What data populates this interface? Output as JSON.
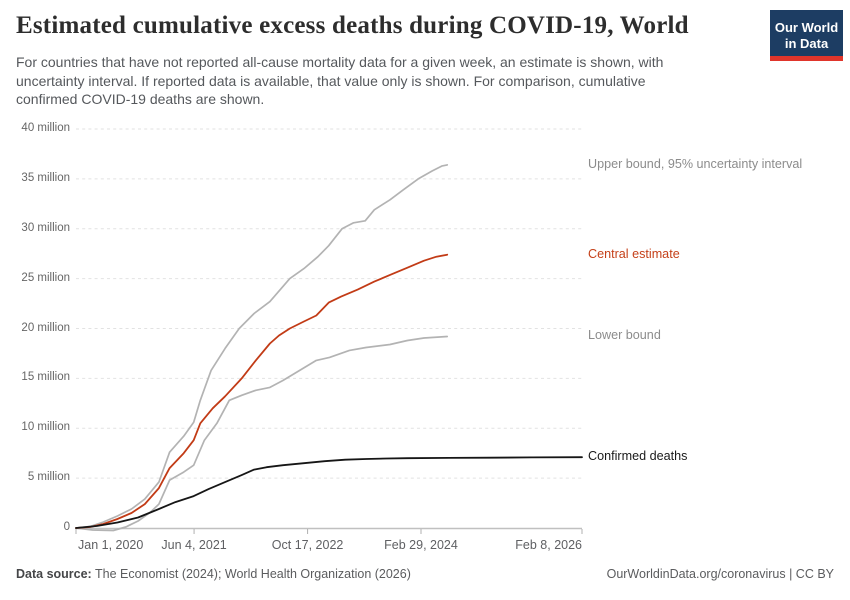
{
  "header": {
    "title": "Estimated cumulative excess deaths during COVID-19, World",
    "subtitle": "For countries that have not reported all-cause mortality data for a given week, an estimate is shown, with\nuncertainty interval. If reported data is available, that value only is shown. For comparison, cumulative\nconfirmed COVID-19 deaths are shown.",
    "logo": {
      "line1": "Our World",
      "line2": "in Data",
      "bg_color": "#1d3d63",
      "stripe_color": "#e0352b"
    }
  },
  "footer": {
    "source_label": "Data source:",
    "source_text": " The Economist (2024); World Health Organization (2026)",
    "right_text": "OurWorldinData.org/coronavirus | CC BY"
  },
  "chart_data": {
    "type": "line",
    "title": "Estimated cumulative excess deaths during COVID-19, World",
    "xlabel": "",
    "ylabel": "",
    "grid": "dashed-horizontal",
    "legend_position": "right-of-line-ends",
    "x_range": [
      2020.0,
      2026.107
    ],
    "ylim": [
      0,
      40
    ],
    "y_unit": "million",
    "y_axis": {
      "ticks": [
        {
          "v": 0,
          "label": "0"
        },
        {
          "v": 5,
          "label": "5 million"
        },
        {
          "v": 10,
          "label": "10 million"
        },
        {
          "v": 15,
          "label": "15 million"
        },
        {
          "v": 20,
          "label": "20 million"
        },
        {
          "v": 25,
          "label": "25 million"
        },
        {
          "v": 30,
          "label": "30 million"
        },
        {
          "v": 35,
          "label": "35 million"
        },
        {
          "v": 40,
          "label": "40 million"
        }
      ]
    },
    "x_axis": {
      "ticks": [
        {
          "t": 2020.0,
          "label": "Jan 1, 2020"
        },
        {
          "t": 2021.425,
          "label": "Jun 4, 2021"
        },
        {
          "t": 2022.795,
          "label": "Oct 17, 2022"
        },
        {
          "t": 2024.164,
          "label": "Feb 29, 2024"
        },
        {
          "t": 2026.107,
          "label": "Feb 8, 2026"
        }
      ]
    },
    "series": [
      {
        "name": "Upper bound, 95% uncertainty interval",
        "color": "#b3b3b3",
        "label_color": "#8c8c8c",
        "width": 1.7,
        "points": [
          [
            2020.0,
            0
          ],
          [
            2020.17,
            0.15
          ],
          [
            2020.33,
            0.6
          ],
          [
            2020.5,
            1.2
          ],
          [
            2020.67,
            1.9
          ],
          [
            2020.83,
            2.9
          ],
          [
            2021.0,
            4.6
          ],
          [
            2021.13,
            7.6
          ],
          [
            2021.3,
            9.2
          ],
          [
            2021.42,
            10.6
          ],
          [
            2021.5,
            12.8
          ],
          [
            2021.63,
            15.8
          ],
          [
            2021.8,
            18.0
          ],
          [
            2021.97,
            20.0
          ],
          [
            2022.15,
            21.5
          ],
          [
            2022.34,
            22.7
          ],
          [
            2022.58,
            25.0
          ],
          [
            2022.75,
            26.0
          ],
          [
            2022.92,
            27.2
          ],
          [
            2023.05,
            28.3
          ],
          [
            2023.21,
            30.0
          ],
          [
            2023.35,
            30.6
          ],
          [
            2023.49,
            30.8
          ],
          [
            2023.6,
            31.9
          ],
          [
            2023.79,
            32.9
          ],
          [
            2023.95,
            33.9
          ],
          [
            2024.13,
            35.0
          ],
          [
            2024.3,
            35.8
          ],
          [
            2024.42,
            36.3
          ],
          [
            2024.48,
            36.4
          ]
        ]
      },
      {
        "name": "Lower bound",
        "color": "#b3b3b3",
        "label_color": "#8c8c8c",
        "width": 1.7,
        "points": [
          [
            2020.0,
            0
          ],
          [
            2020.2,
            -0.2
          ],
          [
            2020.45,
            -0.25
          ],
          [
            2020.6,
            0.1
          ],
          [
            2020.75,
            0.7
          ],
          [
            2020.9,
            1.6
          ],
          [
            2021.0,
            2.4
          ],
          [
            2021.13,
            4.8
          ],
          [
            2021.3,
            5.6
          ],
          [
            2021.42,
            6.3
          ],
          [
            2021.55,
            8.8
          ],
          [
            2021.7,
            10.5
          ],
          [
            2021.85,
            12.8
          ],
          [
            2022.0,
            13.3
          ],
          [
            2022.17,
            13.8
          ],
          [
            2022.34,
            14.1
          ],
          [
            2022.5,
            14.8
          ],
          [
            2022.7,
            15.8
          ],
          [
            2022.9,
            16.8
          ],
          [
            2023.06,
            17.1
          ],
          [
            2023.3,
            17.8
          ],
          [
            2023.5,
            18.1
          ],
          [
            2023.79,
            18.4
          ],
          [
            2024.0,
            18.8
          ],
          [
            2024.2,
            19.05
          ],
          [
            2024.48,
            19.2
          ]
        ]
      },
      {
        "name": "Central estimate",
        "color": "#c23b16",
        "label_color": "#c5411a",
        "width": 1.8,
        "points": [
          [
            2020.0,
            0
          ],
          [
            2020.17,
            0.1
          ],
          [
            2020.33,
            0.4
          ],
          [
            2020.5,
            0.9
          ],
          [
            2020.67,
            1.5
          ],
          [
            2020.83,
            2.4
          ],
          [
            2021.0,
            4.0
          ],
          [
            2021.13,
            6.0
          ],
          [
            2021.3,
            7.5
          ],
          [
            2021.42,
            8.8
          ],
          [
            2021.5,
            10.5
          ],
          [
            2021.65,
            12.0
          ],
          [
            2021.8,
            13.2
          ],
          [
            2022.0,
            15.0
          ],
          [
            2022.17,
            16.8
          ],
          [
            2022.34,
            18.5
          ],
          [
            2022.45,
            19.3
          ],
          [
            2022.58,
            20.0
          ],
          [
            2022.75,
            20.7
          ],
          [
            2022.9,
            21.3
          ],
          [
            2023.05,
            22.6
          ],
          [
            2023.2,
            23.2
          ],
          [
            2023.4,
            23.9
          ],
          [
            2023.6,
            24.7
          ],
          [
            2023.8,
            25.4
          ],
          [
            2024.0,
            26.1
          ],
          [
            2024.2,
            26.8
          ],
          [
            2024.35,
            27.2
          ],
          [
            2024.48,
            27.4
          ]
        ]
      },
      {
        "name": "Confirmed deaths",
        "color": "#161616",
        "label_color": "#1a1a1a",
        "width": 1.8,
        "points": [
          [
            2020.0,
            0
          ],
          [
            2020.25,
            0.2
          ],
          [
            2020.5,
            0.55
          ],
          [
            2020.75,
            1.05
          ],
          [
            2021.0,
            1.9
          ],
          [
            2021.2,
            2.6
          ],
          [
            2021.42,
            3.2
          ],
          [
            2021.6,
            3.9
          ],
          [
            2021.8,
            4.6
          ],
          [
            2022.0,
            5.3
          ],
          [
            2022.15,
            5.85
          ],
          [
            2022.3,
            6.1
          ],
          [
            2022.5,
            6.3
          ],
          [
            2022.75,
            6.5
          ],
          [
            2023.0,
            6.7
          ],
          [
            2023.25,
            6.85
          ],
          [
            2023.5,
            6.92
          ],
          [
            2023.75,
            6.97
          ],
          [
            2024.0,
            7.0
          ],
          [
            2024.5,
            7.03
          ],
          [
            2025.0,
            7.05
          ],
          [
            2025.5,
            7.08
          ],
          [
            2026.107,
            7.1
          ]
        ]
      }
    ],
    "axis_colors": {
      "gridline": "#e2e2e2",
      "axis_line": "#c0c0c0",
      "tick": "#b0b0b0",
      "ytick_text": "#666666",
      "xtick_text": "#5f6063"
    }
  }
}
